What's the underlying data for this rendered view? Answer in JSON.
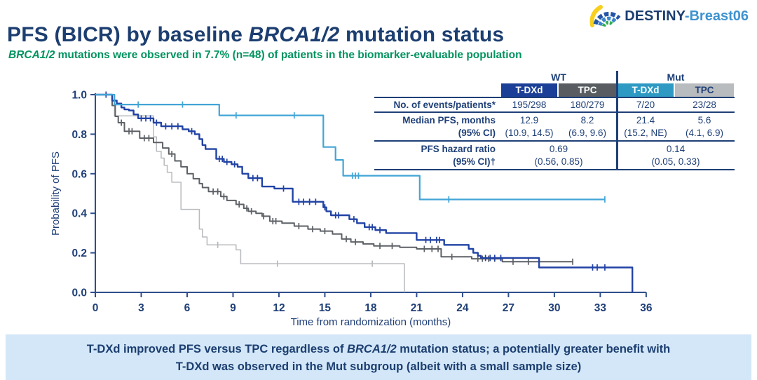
{
  "logo": {
    "text_primary": "DESTINY",
    "text_secondary": "-Breast06"
  },
  "title": {
    "prefix": "PFS (BICR) by baseline ",
    "italic": "BRCA1/2",
    "suffix": " mutation status"
  },
  "subtitle": {
    "italic": "BRCA1/2",
    "rest": " mutations were observed in 7.7% (n=48) of patients in the biomarker-evaluable population"
  },
  "colors": {
    "title_navy": "#1c3e70",
    "subtitle_green": "#00935f",
    "banner_bg": "#d3e7f8",
    "axis_navy": "#2f4e8c",
    "table_navy": "#1e3f77",
    "logo_blue": "#3e93d0"
  },
  "table": {
    "group_headers": [
      "WT",
      "Mut"
    ],
    "col_headers": [
      {
        "label": "T-DXd",
        "bg": "#1b3f97",
        "fg": "#ffffff"
      },
      {
        "label": "TPC",
        "bg": "#595d61",
        "fg": "#ffffff"
      },
      {
        "label": "T-DXd",
        "bg": "#2e9ac4",
        "fg": "#ffffff"
      },
      {
        "label": "TPC",
        "bg": "#b9bcbf",
        "fg": "#1e3f77"
      }
    ],
    "rows": [
      {
        "label_lines": [
          "No. of events/patients*"
        ],
        "cells": [
          [
            "195/298"
          ],
          [
            "180/279"
          ],
          [
            "7/20"
          ],
          [
            "23/28"
          ]
        ]
      },
      {
        "label_lines": [
          "Median PFS, months",
          "(95% CI)"
        ],
        "cells": [
          [
            "12.9",
            "(10.9, 14.5)"
          ],
          [
            "8.2",
            "(6.9, 9.6)"
          ],
          [
            "21.4",
            "(15.2, NE)"
          ],
          [
            "5.6",
            "(4.1, 6.9)"
          ]
        ]
      },
      {
        "label_lines": [
          "PFS hazard ratio",
          "(95% CI)†"
        ],
        "cells_span": [
          [
            "0.69",
            "(0.56, 0.85)"
          ],
          [
            "0.14",
            "(0.05, 0.33)"
          ]
        ]
      }
    ]
  },
  "chart_data": {
    "type": "line",
    "subtype": "kaplan-meier-step",
    "title": "PFS (BICR) by baseline BRCA1/2 mutation status",
    "xlabel": "Time from randomization (months)",
    "ylabel": "Probability of PFS",
    "xlim": [
      0,
      36
    ],
    "ylim": [
      0.0,
      1.0
    ],
    "xticks": [
      0,
      3,
      6,
      9,
      12,
      15,
      18,
      21,
      24,
      27,
      30,
      33,
      36
    ],
    "yticks": [
      0.0,
      0.2,
      0.4,
      0.6,
      0.8,
      1.0
    ],
    "grid": false,
    "legend": "none",
    "series": [
      {
        "id": "mut-tpc",
        "name": "Mut TPC",
        "color": "#b7babd",
        "events_patients": "23/28",
        "median_months": 5.6,
        "points": [
          [
            0,
            1.0
          ],
          [
            1.25,
            0.893
          ],
          [
            3.8,
            0.786
          ],
          [
            4.0,
            0.714
          ],
          [
            4.3,
            0.679
          ],
          [
            4.5,
            0.643
          ],
          [
            4.7,
            0.607
          ],
          [
            5.0,
            0.557
          ],
          [
            5.6,
            0.42
          ],
          [
            6.8,
            0.32
          ],
          [
            7.0,
            0.28
          ],
          [
            7.3,
            0.24
          ],
          [
            9.2,
            0.215
          ],
          [
            9.5,
            0.145
          ],
          [
            20.2,
            0.0
          ]
        ],
        "censors": [
          [
            8.0,
            0.24
          ],
          [
            11.9,
            0.145
          ],
          [
            18.1,
            0.145
          ]
        ]
      },
      {
        "id": "wt-tpc",
        "name": "WT TPC",
        "color": "#5d6166",
        "events_patients": "180/279",
        "median_months": 8.2,
        "points": [
          [
            0,
            1.0
          ],
          [
            1.1,
            0.945
          ],
          [
            1.3,
            0.89
          ],
          [
            1.5,
            0.858
          ],
          [
            1.9,
            0.815
          ],
          [
            2.9,
            0.78
          ],
          [
            3.8,
            0.758
          ],
          [
            4.4,
            0.73
          ],
          [
            4.8,
            0.7
          ],
          [
            5.2,
            0.665
          ],
          [
            5.6,
            0.635
          ],
          [
            6.0,
            0.6
          ],
          [
            6.4,
            0.575
          ],
          [
            6.8,
            0.55
          ],
          [
            7.0,
            0.53
          ],
          [
            7.4,
            0.51
          ],
          [
            8.2,
            0.485
          ],
          [
            8.6,
            0.465
          ],
          [
            9.2,
            0.445
          ],
          [
            9.7,
            0.425
          ],
          [
            10.0,
            0.41
          ],
          [
            10.5,
            0.4
          ],
          [
            10.9,
            0.385
          ],
          [
            11.4,
            0.36
          ],
          [
            12.2,
            0.35
          ],
          [
            13.0,
            0.335
          ],
          [
            13.9,
            0.32
          ],
          [
            14.7,
            0.31
          ],
          [
            15.5,
            0.295
          ],
          [
            16.1,
            0.27
          ],
          [
            16.7,
            0.255
          ],
          [
            17.5,
            0.245
          ],
          [
            18.2,
            0.235
          ],
          [
            19.9,
            0.228
          ],
          [
            21.0,
            0.22
          ],
          [
            22.6,
            0.18
          ],
          [
            24.6,
            0.17
          ],
          [
            26.6,
            0.155
          ],
          [
            31.2,
            0.155
          ]
        ],
        "censors": [
          [
            1.7,
            0.858
          ],
          [
            2.2,
            0.815
          ],
          [
            2.4,
            0.815
          ],
          [
            3.2,
            0.78
          ],
          [
            3.5,
            0.78
          ],
          [
            5.0,
            0.7
          ],
          [
            7.7,
            0.51
          ],
          [
            8.0,
            0.51
          ],
          [
            8.4,
            0.485
          ],
          [
            9.4,
            0.445
          ],
          [
            9.9,
            0.425
          ],
          [
            10.2,
            0.41
          ],
          [
            11.0,
            0.385
          ],
          [
            11.6,
            0.36
          ],
          [
            11.8,
            0.36
          ],
          [
            13.3,
            0.335
          ],
          [
            14.2,
            0.32
          ],
          [
            15.0,
            0.31
          ],
          [
            16.4,
            0.27
          ],
          [
            17.0,
            0.255
          ],
          [
            18.6,
            0.235
          ],
          [
            19.4,
            0.235
          ],
          [
            21.5,
            0.22
          ],
          [
            22.0,
            0.22
          ],
          [
            22.4,
            0.22
          ],
          [
            23.3,
            0.18
          ],
          [
            25.0,
            0.17
          ],
          [
            25.3,
            0.17
          ],
          [
            25.7,
            0.17
          ],
          [
            26.1,
            0.17
          ],
          [
            27.3,
            0.155
          ],
          [
            28.3,
            0.155
          ],
          [
            31.2,
            0.155
          ]
        ]
      },
      {
        "id": "wt-tdxd",
        "name": "WT T-DXd",
        "color": "#2243a5",
        "events_patients": "195/298",
        "median_months": 12.9,
        "points": [
          [
            0,
            1.0
          ],
          [
            1.1,
            0.97
          ],
          [
            1.4,
            0.955
          ],
          [
            1.7,
            0.935
          ],
          [
            1.9,
            0.925
          ],
          [
            2.2,
            0.92
          ],
          [
            2.5,
            0.9
          ],
          [
            2.8,
            0.88
          ],
          [
            3.8,
            0.858
          ],
          [
            4.3,
            0.84
          ],
          [
            5.7,
            0.825
          ],
          [
            6.1,
            0.815
          ],
          [
            6.5,
            0.8
          ],
          [
            6.8,
            0.775
          ],
          [
            7.0,
            0.745
          ],
          [
            7.2,
            0.725
          ],
          [
            7.9,
            0.675
          ],
          [
            8.4,
            0.66
          ],
          [
            8.9,
            0.648
          ],
          [
            9.3,
            0.635
          ],
          [
            9.6,
            0.6
          ],
          [
            10.0,
            0.578
          ],
          [
            10.9,
            0.535
          ],
          [
            11.7,
            0.525
          ],
          [
            12.9,
            0.458
          ],
          [
            14.9,
            0.43
          ],
          [
            15.1,
            0.41
          ],
          [
            15.4,
            0.39
          ],
          [
            16.6,
            0.37
          ],
          [
            17.1,
            0.35
          ],
          [
            17.6,
            0.33
          ],
          [
            18.3,
            0.315
          ],
          [
            19.0,
            0.3
          ],
          [
            21.0,
            0.265
          ],
          [
            22.8,
            0.24
          ],
          [
            24.4,
            0.22
          ],
          [
            24.7,
            0.2
          ],
          [
            25.0,
            0.185
          ],
          [
            25.2,
            0.174
          ],
          [
            29.0,
            0.126
          ],
          [
            35.1,
            0.0
          ]
        ],
        "censors": [
          [
            0.7,
            1.0
          ],
          [
            3.0,
            0.88
          ],
          [
            3.3,
            0.88
          ],
          [
            3.6,
            0.88
          ],
          [
            4.0,
            0.858
          ],
          [
            4.6,
            0.84
          ],
          [
            5.0,
            0.84
          ],
          [
            5.4,
            0.84
          ],
          [
            6.3,
            0.815
          ],
          [
            8.1,
            0.675
          ],
          [
            8.3,
            0.675
          ],
          [
            8.6,
            0.66
          ],
          [
            9.1,
            0.648
          ],
          [
            10.3,
            0.578
          ],
          [
            10.6,
            0.578
          ],
          [
            12.3,
            0.525
          ],
          [
            13.3,
            0.458
          ],
          [
            13.6,
            0.458
          ],
          [
            14.0,
            0.458
          ],
          [
            14.4,
            0.458
          ],
          [
            15.0,
            0.43
          ],
          [
            15.7,
            0.39
          ],
          [
            15.9,
            0.39
          ],
          [
            16.9,
            0.37
          ],
          [
            17.9,
            0.33
          ],
          [
            18.1,
            0.33
          ],
          [
            18.6,
            0.315
          ],
          [
            21.6,
            0.265
          ],
          [
            21.9,
            0.265
          ],
          [
            22.3,
            0.265
          ],
          [
            22.5,
            0.265
          ],
          [
            25.5,
            0.174
          ],
          [
            25.8,
            0.174
          ],
          [
            26.1,
            0.174
          ],
          [
            26.5,
            0.174
          ],
          [
            32.5,
            0.126
          ],
          [
            32.8,
            0.126
          ],
          [
            33.3,
            0.126
          ]
        ]
      },
      {
        "id": "mut-tdxd",
        "name": "Mut T-DXd",
        "color": "#41a5d6",
        "events_patients": "7/20",
        "median_months": 21.4,
        "points": [
          [
            0,
            1.0
          ],
          [
            1.25,
            0.95
          ],
          [
            8.1,
            0.895
          ],
          [
            14.9,
            0.735
          ],
          [
            15.7,
            0.67
          ],
          [
            16.2,
            0.59
          ],
          [
            21.2,
            0.47
          ],
          [
            33.3,
            0.47
          ]
        ],
        "censors": [
          [
            2.8,
            0.95
          ],
          [
            5.7,
            0.95
          ],
          [
            9.2,
            0.895
          ],
          [
            13.0,
            0.895
          ],
          [
            16.8,
            0.59
          ],
          [
            17.0,
            0.59
          ],
          [
            17.2,
            0.59
          ],
          [
            23.1,
            0.47
          ],
          [
            33.3,
            0.47
          ]
        ]
      }
    ]
  },
  "banner": {
    "line1_pre": "T-DXd improved PFS versus TPC regardless of ",
    "line1_italic": "BRCA1/2",
    "line1_post": " mutation status; a potentially greater benefit with",
    "line2": "T-DXd was observed in the Mut subgroup (albeit with a small sample size)"
  }
}
